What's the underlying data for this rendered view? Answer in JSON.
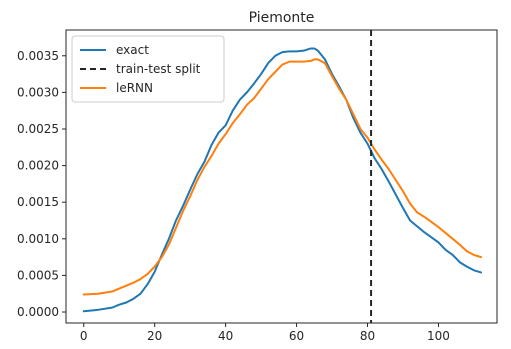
{
  "chart_data": {
    "type": "line",
    "title": "Piemonte",
    "xlabel": "",
    "ylabel": "",
    "xlim": [
      -5,
      116.5
    ],
    "ylim": [
      -0.00015,
      0.003852
    ],
    "x_ticks": [
      0,
      20,
      40,
      60,
      80,
      100
    ],
    "x_tick_labels": [
      "0",
      "20",
      "40",
      "60",
      "80",
      "100"
    ],
    "y_ticks": [
      0.0,
      0.0005,
      0.001,
      0.0015,
      0.002,
      0.0025,
      0.003,
      0.0035
    ],
    "y_tick_labels": [
      "0.0000",
      "0.0005",
      "0.0010",
      "0.0015",
      "0.0020",
      "0.0025",
      "0.0030",
      "0.0035"
    ],
    "grid": false,
    "legend_position": "top-left",
    "legend": [
      "exact",
      "train-test split",
      "leRNN"
    ],
    "series": [
      {
        "name": "exact",
        "color": "#1f77b4",
        "style": "solid",
        "x": [
          0,
          4,
          8,
          10,
          12,
          14,
          16,
          18,
          20,
          22,
          24,
          26,
          28,
          30,
          32,
          34,
          36,
          38,
          40,
          42,
          44,
          46,
          48,
          50,
          52,
          54,
          56,
          58,
          60,
          62,
          64,
          65,
          66,
          68,
          70,
          72,
          74,
          76,
          78,
          80,
          82,
          84,
          86,
          88,
          90,
          92,
          94,
          96,
          98,
          100,
          102,
          104,
          106,
          108,
          110,
          112
        ],
        "y": [
          1e-05,
          3e-05,
          6e-05,
          0.0001,
          0.00013,
          0.00018,
          0.00025,
          0.00038,
          0.00055,
          0.00078,
          0.001,
          0.00125,
          0.00145,
          0.00167,
          0.00188,
          0.00205,
          0.00228,
          0.00245,
          0.00255,
          0.00275,
          0.0029,
          0.003,
          0.00312,
          0.00325,
          0.0034,
          0.0035,
          0.00355,
          0.00356,
          0.00356,
          0.00357,
          0.0036,
          0.0036,
          0.00357,
          0.00345,
          0.00325,
          0.00308,
          0.0029,
          0.00265,
          0.00245,
          0.0023,
          0.0021,
          0.00195,
          0.00178,
          0.0016,
          0.00142,
          0.00125,
          0.00117,
          0.00109,
          0.00102,
          0.00095,
          0.00085,
          0.00078,
          0.00068,
          0.00062,
          0.00057,
          0.00054
        ]
      },
      {
        "name": "leRNN",
        "color": "#ff7f0e",
        "style": "solid",
        "x": [
          0,
          4,
          8,
          10,
          12,
          14,
          16,
          18,
          20,
          22,
          24,
          26,
          28,
          30,
          32,
          34,
          36,
          38,
          40,
          42,
          44,
          46,
          48,
          50,
          52,
          54,
          56,
          58,
          60,
          62,
          64,
          65,
          66,
          68,
          70,
          72,
          74,
          76,
          78,
          80,
          82,
          84,
          86,
          88,
          90,
          92,
          94,
          96,
          98,
          100,
          102,
          104,
          106,
          108,
          110,
          112
        ],
        "y": [
          0.00024,
          0.00025,
          0.00028,
          0.00032,
          0.00036,
          0.0004,
          0.00045,
          0.00052,
          0.00062,
          0.00075,
          0.00092,
          0.00115,
          0.00138,
          0.00158,
          0.0018,
          0.00198,
          0.00213,
          0.0023,
          0.00243,
          0.00258,
          0.0027,
          0.00283,
          0.00292,
          0.00305,
          0.00318,
          0.00328,
          0.00338,
          0.00342,
          0.00342,
          0.00342,
          0.00343,
          0.00345,
          0.00345,
          0.0034,
          0.00322,
          0.00305,
          0.0029,
          0.0027,
          0.0025,
          0.00238,
          0.00222,
          0.00208,
          0.00195,
          0.0018,
          0.00165,
          0.00148,
          0.00136,
          0.0013,
          0.00123,
          0.00116,
          0.00108,
          0.001,
          0.00092,
          0.00083,
          0.00078,
          0.00075
        ]
      }
    ],
    "vlines": [
      {
        "name": "train-test split",
        "x": 81,
        "color": "#262626",
        "style": "dashed"
      }
    ]
  }
}
